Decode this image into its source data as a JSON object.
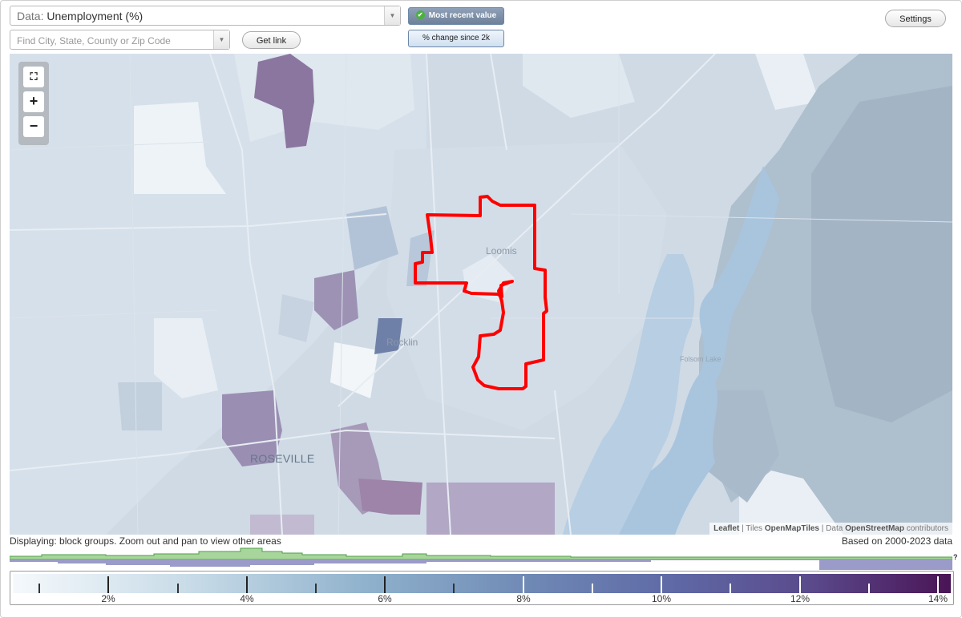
{
  "controls": {
    "data_prefix": "Data:",
    "data_value": "Unemployment (%)",
    "search_placeholder": "Find City, State, County or Zip Code",
    "get_link": "Get link",
    "most_recent": "Most recent value",
    "pct_change": "% change since 2k",
    "settings": "Settings"
  },
  "map": {
    "labels": {
      "loomis": "Loomis",
      "rocklin": "Rocklin",
      "roseville": "ROSEVILLE",
      "folsom_lake": "Folsom Lake"
    },
    "attribution": {
      "leaflet": "Leaflet",
      "tiles_prefix": " | Tiles ",
      "tiles": "OpenMapTiles",
      "data_prefix": " | Data ",
      "data": "OpenStreetMap",
      "contributors": " contributors"
    },
    "colors": {
      "highlight_outline": "#ff0000",
      "low": "#e9f0f6",
      "mid": "#b6c8da",
      "high": "#7a5e92"
    }
  },
  "status": {
    "displaying": "Displaying: block groups. Zoom out and pan to view other areas",
    "based_on": "Based on 2000-2023 data"
  },
  "legend": {
    "labels": [
      "2%",
      "4%",
      "6%",
      "8%",
      "10%",
      "12%",
      "14%"
    ],
    "help": "?"
  }
}
